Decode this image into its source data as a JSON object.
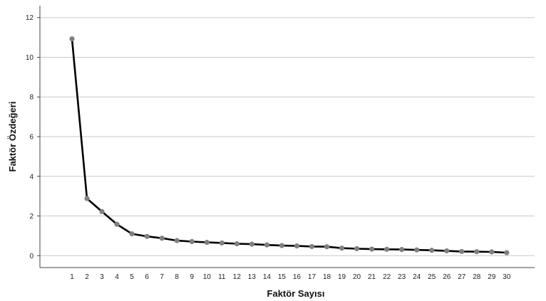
{
  "chart_data": {
    "type": "line",
    "title": "",
    "xlabel": "Faktör Sayısı",
    "ylabel": "Faktör Özdeğeri",
    "x": [
      1,
      2,
      3,
      4,
      5,
      6,
      7,
      8,
      9,
      10,
      11,
      12,
      13,
      14,
      15,
      16,
      17,
      18,
      19,
      20,
      21,
      22,
      23,
      24,
      25,
      26,
      27,
      28,
      29,
      30
    ],
    "values": [
      10.93,
      2.88,
      2.22,
      1.58,
      1.1,
      0.97,
      0.88,
      0.76,
      0.71,
      0.67,
      0.64,
      0.6,
      0.58,
      0.54,
      0.51,
      0.49,
      0.46,
      0.45,
      0.38,
      0.35,
      0.33,
      0.32,
      0.31,
      0.29,
      0.27,
      0.24,
      0.21,
      0.2,
      0.19,
      0.15
    ],
    "ylim": [
      -0.6,
      12.6
    ],
    "yticks": [
      0,
      2,
      4,
      6,
      8,
      10,
      12
    ],
    "grid": "horizontal",
    "legend": "none",
    "colors": {
      "line": "#000000",
      "marker": "#808080",
      "grid": "#c8c8c8",
      "axis": "#444444"
    }
  }
}
